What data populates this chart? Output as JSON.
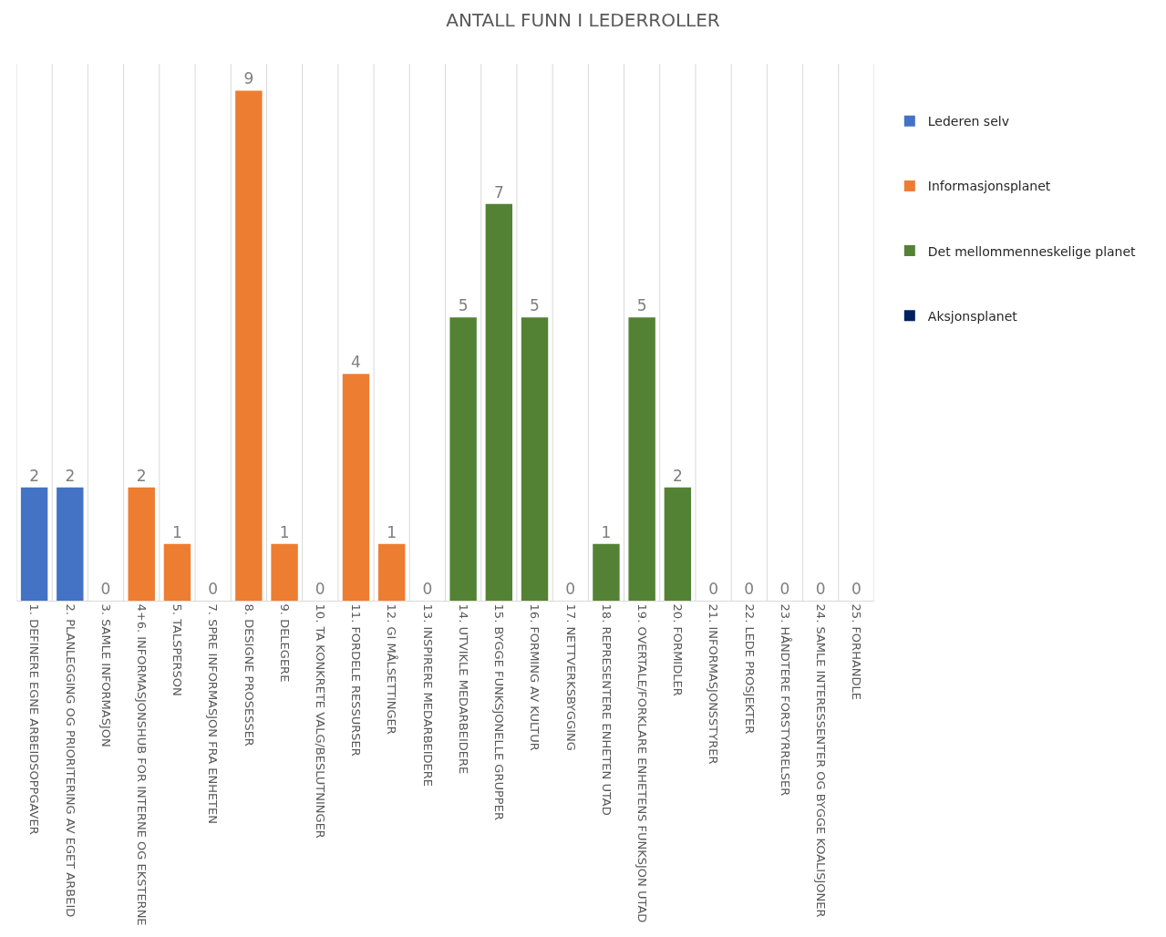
{
  "chart_data": {
    "type": "bar",
    "title": "ANTALL FUNN I LEDERROLLER",
    "categories": [
      "1. DEFINERE EGNE ARBEIDSOPPGAVER",
      "2. PLANLEGGING OG PRIORITERING AV EGET ARBEID",
      "3. SAMLE INFORMASJON",
      "4+6. INFORMASJONSHUB FOR INTERNE OG EKSTERNE",
      "5. TALSPERSON",
      "7. SPRE INFORMASJON FRA ENHETEN",
      "8. DESIGNE PROSESSER",
      "9. DELEGERE",
      "10. TA KONKRETE VALG/BESLUTNINGER",
      "11. FORDELE RESSURSER",
      "12. GI MÅLSETTINGER",
      "13. INSPIRERE MEDARBEIDERE",
      "14. UTVIKLE MEDARBEIDERE",
      "15. BYGGE FUNKSJONELLE GRUPPER",
      "16. FORMING AV KULTUR",
      "17. NETTVERKSBYGGING",
      "18. REPRESENTERE ENHETEN UTAD",
      "19. OVERTALE/FORKLARE ENHETENS FUNKSJON UTAD",
      "20. FORMIDLER",
      "21. INFORMASJONSSTYRER",
      "22. LEDE PROSJEKTER",
      "23. HÅNDTERE FORSTYRRELSER",
      "24. SAMLE INTERESSENTER OG BYGGE KOALISJONER",
      "25. FORHANDLE"
    ],
    "series": [
      {
        "name": "Lederen selv",
        "color": "#4472c4",
        "values": [
          2,
          2,
          0,
          null,
          null,
          null,
          null,
          null,
          null,
          null,
          null,
          null,
          null,
          null,
          null,
          null,
          null,
          null,
          null,
          null,
          null,
          null,
          null,
          null
        ]
      },
      {
        "name": "Informasjonsplanet",
        "color": "#ed7d31",
        "values": [
          null,
          null,
          null,
          2,
          1,
          0,
          9,
          1,
          0,
          4,
          1,
          null,
          null,
          null,
          null,
          null,
          null,
          null,
          null,
          null,
          null,
          null,
          null,
          null
        ]
      },
      {
        "name": "Det mellommenneskelige planet",
        "color": "#548235",
        "values": [
          null,
          null,
          null,
          null,
          null,
          null,
          null,
          null,
          null,
          null,
          null,
          0,
          5,
          7,
          5,
          0,
          1,
          5,
          2,
          null,
          null,
          null,
          null,
          null
        ]
      },
      {
        "name": "Aksjonsplanet",
        "color": "#002060",
        "values": [
          null,
          null,
          null,
          null,
          null,
          null,
          null,
          null,
          null,
          null,
          null,
          null,
          null,
          null,
          null,
          null,
          null,
          null,
          null,
          0,
          0,
          0,
          0,
          0
        ]
      }
    ],
    "data_labels": true,
    "grid": "x",
    "legend": "right"
  }
}
